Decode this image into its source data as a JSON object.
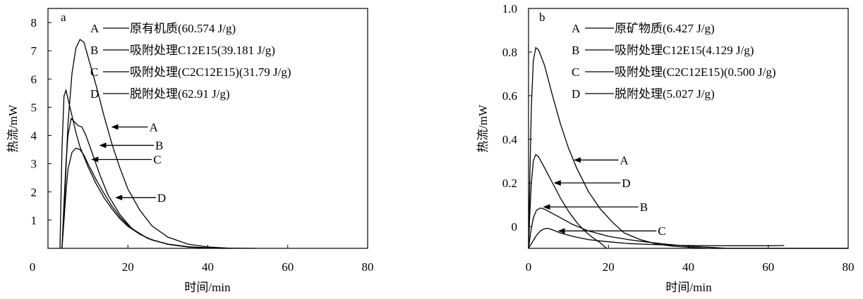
{
  "chart_data": [
    {
      "type": "line",
      "panel_label": "a",
      "xlabel": "时间/min",
      "ylabel": "热流/mW",
      "xlim": [
        0,
        80
      ],
      "ylim": [
        0,
        8.5
      ],
      "x_ticks": [
        0,
        20,
        40,
        60,
        80
      ],
      "y_ticks": [
        1,
        2,
        3,
        4,
        5,
        6,
        7,
        8
      ],
      "legend": [
        {
          "key": "A",
          "text": "原有机质(60.574 J/g)"
        },
        {
          "key": "B",
          "text": "吸附处理C12E15(39.181 J/g)"
        },
        {
          "key": "C",
          "text": "吸附处理(C2C12E15)(31.79 J/g)"
        },
        {
          "key": "D",
          "text": "脱附处理(62.91 J/g)"
        }
      ],
      "annotations": [
        {
          "label": "A",
          "tip": [
            16,
            4.3
          ],
          "tail": [
            25,
            4.3
          ]
        },
        {
          "label": "B",
          "tip": [
            13,
            3.65
          ],
          "tail": [
            26.5,
            3.65
          ]
        },
        {
          "label": "C",
          "tip": [
            11,
            3.15
          ],
          "tail": [
            26,
            3.15
          ]
        },
        {
          "label": "D",
          "tip": [
            17,
            1.8
          ],
          "tail": [
            27,
            1.8
          ]
        }
      ],
      "series": [
        {
          "name": "A",
          "points": [
            [
              3.5,
              0
            ],
            [
              4,
              1.2
            ],
            [
              4.5,
              2.8
            ],
            [
              5,
              4.4
            ],
            [
              6,
              6.2
            ],
            [
              7,
              7.1
            ],
            [
              8,
              7.4
            ],
            [
              9,
              7.3
            ],
            [
              10,
              6.8
            ],
            [
              12,
              5.8
            ],
            [
              14,
              4.7
            ],
            [
              16,
              3.7
            ],
            [
              18,
              2.85
            ],
            [
              20,
              2.1
            ],
            [
              23,
              1.35
            ],
            [
              26,
              0.8
            ],
            [
              30,
              0.4
            ],
            [
              35,
              0.15
            ],
            [
              40,
              0.05
            ],
            [
              45,
              0.01
            ],
            [
              52,
              0
            ]
          ]
        },
        {
          "name": "B",
          "points": [
            [
              3.5,
              0
            ],
            [
              4,
              1.6
            ],
            [
              4.5,
              3.0
            ],
            [
              5,
              4.0
            ],
            [
              5.8,
              4.6
            ],
            [
              6.5,
              4.5
            ],
            [
              7.5,
              4.35
            ],
            [
              8.5,
              4.3
            ],
            [
              9.5,
              4.0
            ],
            [
              11,
              3.4
            ],
            [
              13,
              2.6
            ],
            [
              15,
              1.9
            ],
            [
              18,
              1.2
            ],
            [
              21,
              0.7
            ],
            [
              25,
              0.35
            ],
            [
              30,
              0.14
            ],
            [
              35,
              0.05
            ],
            [
              40,
              0.01
            ],
            [
              45,
              0
            ]
          ]
        },
        {
          "name": "C",
          "points": [
            [
              3.5,
              0
            ],
            [
              4,
              1.0
            ],
            [
              4.5,
              2.0
            ],
            [
              5,
              2.8
            ],
            [
              6,
              3.4
            ],
            [
              7,
              3.55
            ],
            [
              8,
              3.5
            ],
            [
              9,
              3.3
            ],
            [
              10,
              3.0
            ],
            [
              12,
              2.45
            ],
            [
              14,
              1.95
            ],
            [
              16,
              1.5
            ],
            [
              18,
              1.12
            ],
            [
              20,
              0.82
            ],
            [
              23,
              0.5
            ],
            [
              26,
              0.3
            ],
            [
              30,
              0.15
            ],
            [
              35,
              0.06
            ],
            [
              40,
              0.02
            ],
            [
              46,
              0
            ]
          ]
        },
        {
          "name": "D",
          "points": [
            [
              3,
              0
            ],
            [
              3.5,
              3.5
            ],
            [
              4,
              5.4
            ],
            [
              4.5,
              5.6
            ],
            [
              5,
              5.3
            ],
            [
              6,
              4.7
            ],
            [
              7,
              4.1
            ],
            [
              8,
              3.6
            ],
            [
              10,
              2.9
            ],
            [
              12,
              2.3
            ],
            [
              14,
              1.8
            ],
            [
              16,
              1.4
            ],
            [
              18,
              1.05
            ],
            [
              20,
              0.78
            ],
            [
              23,
              0.5
            ],
            [
              26,
              0.3
            ],
            [
              30,
              0.15
            ],
            [
              35,
              0.05
            ],
            [
              40,
              0.01
            ],
            [
              44,
              0
            ]
          ]
        }
      ]
    },
    {
      "type": "line",
      "panel_label": "b",
      "xlabel": "时间/min",
      "ylabel": "热流/mW",
      "xlim": [
        0,
        80
      ],
      "ylim": [
        -0.1,
        1.0
      ],
      "x_ticks": [
        0,
        20,
        40,
        60,
        80
      ],
      "y_ticks": [
        0,
        0.2,
        0.4,
        0.6,
        0.8,
        1.0
      ],
      "y_tick_labels": [
        "0",
        "0.2",
        "0.4",
        "0.6",
        "0.8",
        "1.0"
      ],
      "legend": [
        {
          "key": "A",
          "text": "原矿物质(6.427 J/g)"
        },
        {
          "key": "B",
          "text": "吸附处理C12E15(4.129 J/g)"
        },
        {
          "key": "C",
          "text": "吸附处理(C2C12E15)(0.500 J/g)"
        },
        {
          "key": "D",
          "text": "脱附处理(5.027 J/g)"
        }
      ],
      "annotations": [
        {
          "label": "A",
          "tip": [
            11.5,
            0.305
          ],
          "tail": [
            22.5,
            0.305
          ]
        },
        {
          "label": "D",
          "tip": [
            6.5,
            0.2
          ],
          "tail": [
            23,
            0.2
          ]
        },
        {
          "label": "B",
          "tip": [
            3.8,
            0.09
          ],
          "tail": [
            27.5,
            0.09
          ]
        },
        {
          "label": "C",
          "tip": [
            7.5,
            -0.02
          ],
          "tail": [
            32,
            -0.02
          ]
        }
      ],
      "series": [
        {
          "name": "A",
          "points": [
            [
              0,
              -0.1
            ],
            [
              0.3,
              0.2
            ],
            [
              0.7,
              0.55
            ],
            [
              1.2,
              0.76
            ],
            [
              1.8,
              0.82
            ],
            [
              2.5,
              0.81
            ],
            [
              4,
              0.74
            ],
            [
              6,
              0.6
            ],
            [
              8,
              0.47
            ],
            [
              10,
              0.36
            ],
            [
              12,
              0.27
            ],
            [
              15,
              0.16
            ],
            [
              18,
              0.08
            ],
            [
              21,
              0.02
            ],
            [
              24,
              -0.03
            ],
            [
              28,
              -0.06
            ],
            [
              32,
              -0.08
            ],
            [
              36,
              -0.09
            ],
            [
              40,
              -0.095
            ],
            [
              45,
              -0.1
            ],
            [
              80,
              -0.1
            ]
          ]
        },
        {
          "name": "D",
          "points": [
            [
              0,
              -0.1
            ],
            [
              0.3,
              0.05
            ],
            [
              0.7,
              0.2
            ],
            [
              1.2,
              0.3
            ],
            [
              1.8,
              0.33
            ],
            [
              2.5,
              0.32
            ],
            [
              4,
              0.27
            ],
            [
              6,
              0.2
            ],
            [
              8,
              0.13
            ],
            [
              10,
              0.07
            ],
            [
              12,
              0.02
            ],
            [
              14,
              -0.02
            ],
            [
              16,
              -0.05
            ],
            [
              18,
              -0.075
            ],
            [
              19.5,
              -0.1
            ]
          ]
        },
        {
          "name": "B",
          "points": [
            [
              0,
              -0.1
            ],
            [
              0.6,
              -0.02
            ],
            [
              1.2,
              0.04
            ],
            [
              2,
              0.075
            ],
            [
              3,
              0.085
            ],
            [
              4,
              0.08
            ],
            [
              6,
              0.06
            ],
            [
              8,
              0.04
            ],
            [
              11,
              0.01
            ],
            [
              15,
              -0.02
            ],
            [
              20,
              -0.045
            ],
            [
              25,
              -0.06
            ],
            [
              30,
              -0.072
            ],
            [
              35,
              -0.082
            ],
            [
              40,
              -0.09
            ],
            [
              45,
              -0.095
            ],
            [
              50,
              -0.1
            ],
            [
              80,
              -0.1
            ]
          ]
        },
        {
          "name": "C",
          "points": [
            [
              0,
              -0.1
            ],
            [
              1,
              -0.07
            ],
            [
              2,
              -0.04
            ],
            [
              3,
              -0.02
            ],
            [
              4,
              -0.01
            ],
            [
              4.8,
              -0.008
            ],
            [
              6,
              -0.015
            ],
            [
              8,
              -0.03
            ],
            [
              11,
              -0.045
            ],
            [
              15,
              -0.06
            ],
            [
              20,
              -0.07
            ],
            [
              25,
              -0.078
            ],
            [
              30,
              -0.082
            ],
            [
              35,
              -0.085
            ],
            [
              40,
              -0.087
            ],
            [
              50,
              -0.088
            ],
            [
              60,
              -0.088
            ],
            [
              64,
              -0.087
            ]
          ]
        }
      ]
    }
  ]
}
